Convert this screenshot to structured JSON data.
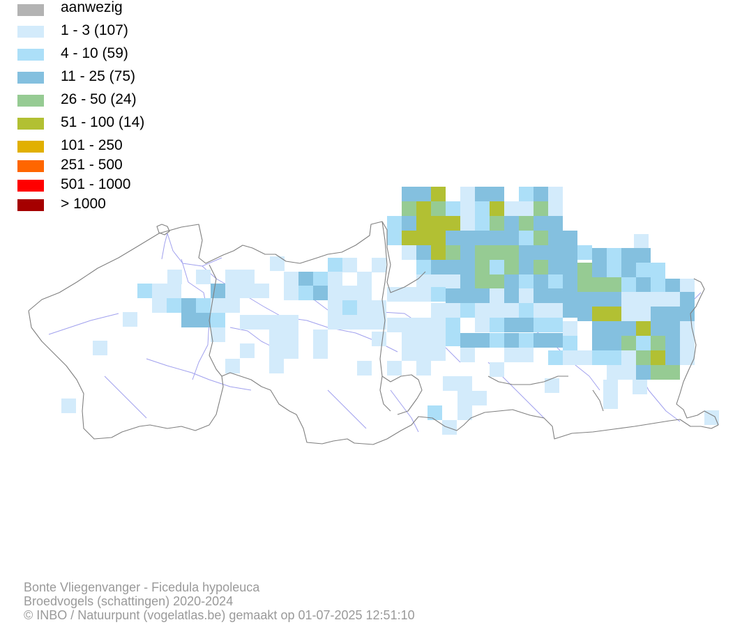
{
  "legend": {
    "items": [
      {
        "label": "aanwezig",
        "color": "#b3b3b3"
      },
      {
        "label": "1 - 3 (107)",
        "color": "#d3ebfb"
      },
      {
        "label": "4 - 10 (59)",
        "color": "#acdff8"
      },
      {
        "label": "11 - 25 (75)",
        "color": "#84c0df"
      },
      {
        "label": "26 - 50 (24)",
        "color": "#96cb93"
      },
      {
        "label": "51 - 100 (14)",
        "color": "#b2c033"
      },
      {
        "label": "101 - 250",
        "color": "#e1b000"
      },
      {
        "label": "251 - 500",
        "color": "#ff6600"
      },
      {
        "label": "501 - 1000",
        "color": "#ff0000"
      },
      {
        "label": "> 1000",
        "color": "#a50000"
      }
    ]
  },
  "map": {
    "boundary_color": "#7f7f7f",
    "river_color": "#a0a0ee"
  },
  "footer": {
    "species": "Bonte Vliegenvanger - Ficedula hypoleuca",
    "dataset": "Broedvogels (schattingen) 2020-2024",
    "credit": "© INBO / Natuurpunt (vogelatlas.be) gemaakt op 01-07-2025 12:51:10"
  }
}
